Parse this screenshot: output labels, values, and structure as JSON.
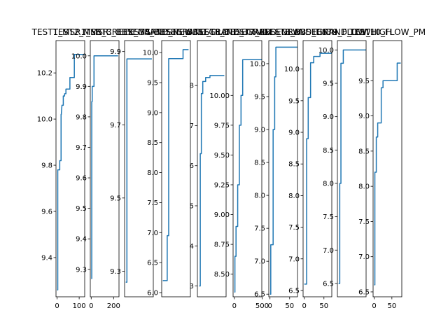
{
  "colors": {
    "line": "#1f77b4",
    "axes": "#000000",
    "background": "#ffffff"
  },
  "chart_data": [
    {
      "type": "line",
      "title": "TEST1_MSR1_MSR",
      "xlim": [
        -5,
        125
      ],
      "ylim": [
        9.23,
        10.34
      ],
      "xticks": [
        0,
        100
      ],
      "yticks": [
        9.4,
        9.6,
        9.8,
        10.0,
        10.2
      ],
      "ytick_labels": [
        "9.4",
        "9.6",
        "9.8",
        "10.0",
        "10.2"
      ],
      "x": [
        0,
        3,
        3,
        12,
        12,
        18,
        18,
        19,
        22,
        28,
        28,
        34,
        34,
        40,
        40,
        58,
        58,
        65,
        65,
        78,
        78,
        105,
        105,
        115,
        115,
        125
      ],
      "y": [
        9.26,
        9.26,
        9.78,
        9.78,
        9.82,
        9.82,
        10.02,
        10.02,
        10.06,
        10.06,
        10.1,
        10.1,
        10.11,
        10.11,
        10.13,
        10.13,
        10.18,
        10.18,
        10.18,
        10.18,
        10.28,
        10.28,
        10.28,
        10.28,
        10.28,
        10.28
      ]
    },
    {
      "type": "line",
      "title": "TEST2_MSR_CREEK_MSR",
      "xlim": [
        -8,
        248
      ],
      "ylim": [
        9.21,
        10.05
      ],
      "xticks": [
        0,
        200
      ],
      "yticks": [
        9.3,
        9.4,
        9.5,
        9.6,
        9.7,
        9.8,
        9.9,
        10.0
      ],
      "ytick_labels": [
        "9.3",
        "9.4",
        "9.5",
        "9.6",
        "9.7",
        "9.8",
        "9.9",
        "10.0"
      ],
      "x": [
        0,
        5,
        5,
        9,
        9,
        14,
        14,
        25,
        25,
        40,
        40,
        70,
        70,
        110,
        110,
        160,
        160,
        240
      ],
      "y": [
        9.27,
        9.27,
        9.85,
        9.85,
        9.9,
        9.9,
        9.9,
        9.9,
        10.0,
        10.0,
        10.0,
        10.0,
        10.0,
        10.0,
        10.0,
        10.0,
        10.0,
        10.0
      ]
    },
    {
      "type": "line",
      "title": "TEST3_BBSEGRAND_NEW",
      "xlim": [
        -4,
        95
      ],
      "ylim": [
        9.23,
        9.93
      ],
      "xticks": [],
      "yticks": [
        9.3,
        9.5,
        9.7,
        9.9
      ],
      "ytick_labels": [
        "9.3",
        "9.5",
        "9.7",
        "9.9"
      ],
      "x": [
        0,
        4,
        4,
        10,
        10,
        20,
        20,
        90
      ],
      "y": [
        9.27,
        9.27,
        9.88,
        9.88,
        9.88,
        9.88,
        9.88,
        9.88
      ]
    },
    {
      "type": "line",
      "title": "TEST4_BBSEGRAND_OLD",
      "xlim": [
        -3,
        75
      ],
      "ylim": [
        5.93,
        10.2
      ],
      "xticks": [],
      "yticks": [
        6.0,
        6.5,
        7.0,
        7.5,
        8.0,
        8.5,
        9.0,
        9.5,
        10.0
      ],
      "ytick_labels": [
        "6.0",
        "6.5",
        "7.0",
        "7.5",
        "8.0",
        "8.5",
        "9.0",
        "9.5",
        "10.0"
      ],
      "x": [
        0,
        12,
        12,
        16,
        16,
        24,
        24,
        55,
        55,
        62,
        62,
        70
      ],
      "y": [
        6.2,
        6.2,
        6.95,
        6.95,
        9.9,
        9.9,
        9.9,
        9.9,
        10.05,
        10.05,
        10.05,
        10.05
      ]
    },
    {
      "type": "line",
      "title": "TEST5_BBSEGRAND_TRAIL",
      "xlim": [
        -5,
        75
      ],
      "ylim": [
        2.73,
        9.12
      ],
      "xticks": [],
      "yticks": [
        3,
        4,
        5,
        6,
        7,
        8
      ],
      "ytick_labels": [
        "3",
        "4",
        "5",
        "6",
        "7",
        "8"
      ],
      "x": [
        0,
        3,
        3,
        6,
        6,
        10,
        10,
        18,
        18,
        30,
        30,
        50,
        50,
        70
      ],
      "y": [
        3.0,
        3.0,
        6.3,
        6.3,
        7.8,
        7.8,
        8.1,
        8.1,
        8.2,
        8.2,
        8.25,
        8.25,
        8.25,
        8.25
      ]
    },
    {
      "type": "line",
      "title": "TEST6_BBSEGRAND_NEW",
      "xlim": [
        -23,
        495
      ],
      "ylim": [
        8.31,
        10.46
      ],
      "xticks": [
        0,
        500
      ],
      "yticks": [
        8.5,
        8.75,
        9.0,
        9.25,
        9.5,
        9.75,
        10.0
      ],
      "ytick_labels": [
        "8.50",
        "8.75",
        "9.00",
        "9.25",
        "9.50",
        "9.75",
        "10.00"
      ],
      "x": [
        0,
        10,
        10,
        30,
        30,
        60,
        60,
        90,
        90,
        120,
        120,
        150,
        150,
        170,
        170,
        190,
        190,
        500
      ],
      "y": [
        8.35,
        8.35,
        8.65,
        8.65,
        8.9,
        8.9,
        9.25,
        9.25,
        9.75,
        9.75,
        10.0,
        10.0,
        10.3,
        10.3,
        10.3,
        10.3,
        10.3,
        10.3
      ]
    },
    {
      "type": "line",
      "title": "TEST7_BBSEGRAND_HIGH",
      "xlim": [
        -3,
        70
      ],
      "ylim": [
        6.46,
        10.35
      ],
      "xticks": [
        0,
        50
      ],
      "yticks": [
        6.5,
        7.0,
        7.5,
        8.0,
        8.5,
        9.0,
        9.5,
        10.0
      ],
      "ytick_labels": [
        "6.5",
        "7.0",
        "7.5",
        "8.0",
        "8.5",
        "9.0",
        "9.5",
        "10.0"
      ],
      "x": [
        0,
        2,
        2,
        8,
        8,
        12,
        12,
        15,
        15,
        20,
        20,
        70
      ],
      "y": [
        6.5,
        6.5,
        7.25,
        7.25,
        9.0,
        9.0,
        9.8,
        9.8,
        10.25,
        10.25,
        10.25,
        10.25
      ]
    },
    {
      "type": "line",
      "title": "TEST8_BBSEGRAND_LOW",
      "xlim": [
        -3,
        70
      ],
      "ylim": [
        6.4,
        10.45
      ],
      "xticks": [
        0,
        50
      ],
      "yticks": [
        6.5,
        7.0,
        7.5,
        8.0,
        8.5,
        9.0,
        9.5,
        10.0
      ],
      "ytick_labels": [
        "6.5",
        "7.0",
        "7.5",
        "8.0",
        "8.5",
        "9.0",
        "9.5",
        "10.0"
      ],
      "x": [
        0,
        6,
        6,
        10,
        10,
        16,
        16,
        24,
        24,
        40,
        40,
        70
      ],
      "y": [
        6.6,
        6.6,
        8.9,
        8.9,
        9.55,
        9.55,
        10.1,
        10.1,
        10.2,
        10.2,
        10.25,
        10.25
      ]
    },
    {
      "type": "line",
      "title": "TEST9_FLOW_HIGH",
      "xlim": [
        -3,
        70
      ],
      "ylim": [
        6.3,
        10.14
      ],
      "xticks": [],
      "yticks": [
        6.5,
        7.0,
        7.5,
        8.0,
        8.5,
        9.0,
        9.5,
        10.0
      ],
      "ytick_labels": [
        "6.5",
        "7.0",
        "7.5",
        "8.0",
        "8.5",
        "9.0",
        "9.5",
        "10.0"
      ],
      "x": [
        0,
        3,
        3,
        6,
        6,
        12,
        12,
        30,
        30,
        70
      ],
      "y": [
        6.5,
        6.5,
        8.0,
        8.0,
        9.8,
        9.8,
        10.0,
        10.0,
        10.0,
        10.0
      ]
    },
    {
      "type": "line",
      "title": "TEST10_FLOW_PM",
      "xlim": [
        -3,
        78
      ],
      "ylim": [
        6.43,
        10.07
      ],
      "xticks": [
        0,
        50
      ],
      "yticks": [
        6.5,
        7.0,
        7.5,
        8.0,
        8.5,
        9.0,
        9.5
      ],
      "ytick_labels": [
        "6.5",
        "7.0",
        "7.5",
        "8.0",
        "8.5",
        "9.0",
        "9.5"
      ],
      "x": [
        0,
        2,
        2,
        6,
        6,
        10,
        10,
        20,
        20,
        25,
        25,
        40,
        40,
        65,
        65,
        75
      ],
      "y": [
        6.6,
        6.6,
        8.2,
        8.2,
        8.7,
        8.7,
        8.9,
        8.9,
        9.4,
        9.4,
        9.5,
        9.5,
        9.5,
        9.5,
        9.75,
        9.75
      ]
    }
  ]
}
